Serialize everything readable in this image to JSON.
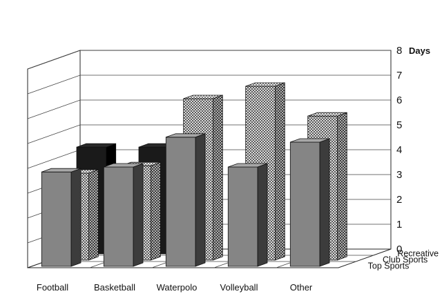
{
  "chart_data": {
    "type": "bar",
    "style": "3d-grouped",
    "categories": [
      "Football",
      "Basketball",
      "Waterpolo",
      "Volleyball",
      "Other"
    ],
    "series": [
      {
        "name": "Top Sports",
        "values": [
          3.8,
          4.0,
          5.2,
          4.0,
          5.0
        ],
        "color": "#7a7a7a"
      },
      {
        "name": "Club Sports",
        "values": [
          3.5,
          3.8,
          6.5,
          7.0,
          5.8
        ],
        "color": "#c9c9c9"
      },
      {
        "name": "Recreative",
        "values": [
          4.3,
          4.3,
          0,
          0,
          0
        ],
        "color": "#111111"
      }
    ],
    "y_ticks": [
      "0",
      "1",
      "2",
      "3",
      "4",
      "5",
      "6",
      "7",
      "8"
    ],
    "ylim": [
      0,
      8
    ],
    "y_unit": "Days",
    "grid": true
  }
}
